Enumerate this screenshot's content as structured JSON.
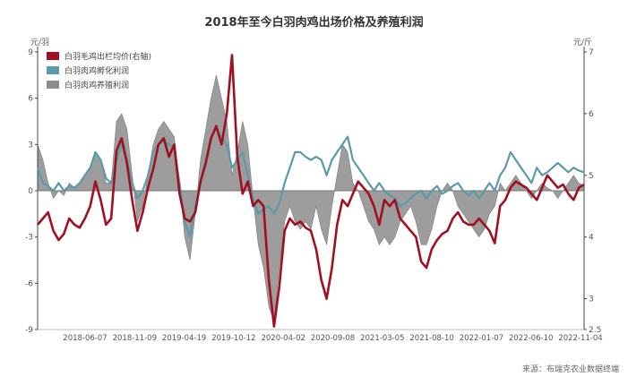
{
  "chart_data": {
    "type": "line",
    "title": "2018年至今白羽肉鸡出场价格及养殖利润",
    "left_axis": {
      "unit": "元/羽",
      "ticks": [
        -9,
        -6,
        -3,
        0,
        3,
        6,
        9
      ],
      "range": [
        -9,
        9
      ]
    },
    "right_axis": {
      "unit": "元/斤",
      "ticks": [
        2.5,
        3,
        4,
        5,
        6,
        7
      ],
      "range": [
        2.5,
        7
      ]
    },
    "x_ticks": [
      "2018-06-07",
      "2018-11-09",
      "2019-04-19",
      "2019-10-12",
      "2020-04-02",
      "2020-09-08",
      "2021-03-05",
      "2021-08-10",
      "2022-01-07",
      "2022-06-10",
      "2022-11-04"
    ],
    "legend_position": "top-left",
    "series": [
      {
        "name": "白羽毛鸡出栏均价(右轴)",
        "axis": "right",
        "style": "line",
        "color": "#a01020",
        "values": [
          4.2,
          4.3,
          4.4,
          4.1,
          3.95,
          4.05,
          4.3,
          4.2,
          4.15,
          4.3,
          4.5,
          4.9,
          4.6,
          4.2,
          4.3,
          5.4,
          5.6,
          5.2,
          4.6,
          4.1,
          4.4,
          4.8,
          5.1,
          5.5,
          5.6,
          5.3,
          5.5,
          4.7,
          4.3,
          4.25,
          4.4,
          4.9,
          5.2,
          5.6,
          5.8,
          5.5,
          6.0,
          6.95,
          5.3,
          4.7,
          4.9,
          4.5,
          4.6,
          4.5,
          3.3,
          2.55,
          3.2,
          4.1,
          4.3,
          4.2,
          4.25,
          4.15,
          4.1,
          3.8,
          3.3,
          3.0,
          3.5,
          4.2,
          4.6,
          4.5,
          4.7,
          4.9,
          4.8,
          4.7,
          4.5,
          4.2,
          4.6,
          4.5,
          4.6,
          4.3,
          4.2,
          4.1,
          4.0,
          3.6,
          3.5,
          3.8,
          3.95,
          4.05,
          4.1,
          4.3,
          4.4,
          4.25,
          4.2,
          4.2,
          4.3,
          4.2,
          4.1,
          3.9,
          4.5,
          4.6,
          4.8,
          4.9,
          4.85,
          4.8,
          4.7,
          4.6,
          4.8,
          5.0,
          4.9,
          4.8,
          4.85,
          4.7,
          4.6,
          4.8,
          4.85
        ]
      },
      {
        "name": "白羽肉鸡孵化利润",
        "axis": "left",
        "style": "line",
        "color": "#5b9aaa",
        "values": [
          1.5,
          0.5,
          0.3,
          0.0,
          0.5,
          0.0,
          0.3,
          0.2,
          0.5,
          1.0,
          1.5,
          2.5,
          2.0,
          0.8,
          0.5,
          2.0,
          3.0,
          2.0,
          0.5,
          -0.5,
          0.0,
          1.0,
          2.5,
          3.0,
          3.2,
          3.0,
          2.8,
          0.5,
          -2.0,
          -3.0,
          -1.0,
          0.5,
          2.0,
          3.5,
          4.0,
          3.5,
          3.0,
          1.5,
          2.0,
          2.5,
          1.0,
          -0.5,
          -1.5,
          -1.2,
          -1.0,
          -1.5,
          -0.8,
          0.5,
          1.5,
          2.5,
          2.5,
          2.2,
          2.0,
          2.2,
          2.0,
          1.0,
          2.0,
          2.5,
          3.0,
          3.5,
          2.0,
          1.5,
          1.0,
          0.5,
          0.0,
          0.5,
          0.0,
          -0.3,
          -0.5,
          -1.0,
          -0.8,
          -0.5,
          -0.2,
          0.0,
          -0.5,
          0.0,
          0.3,
          -0.2,
          0.0,
          0.3,
          0.5,
          0.0,
          -0.3,
          0.0,
          -0.5,
          0.0,
          0.5,
          0.0,
          1.0,
          1.5,
          2.5,
          2.0,
          1.5,
          1.0,
          0.5,
          1.5,
          1.0,
          1.2,
          1.5,
          1.8,
          1.5,
          1.2,
          1.5,
          1.3,
          1.2
        ]
      },
      {
        "name": "白羽肉鸡养殖利润",
        "axis": "left",
        "style": "area",
        "color": "#8c8c8c",
        "values": [
          3.0,
          2.0,
          0.5,
          -0.5,
          0.0,
          -0.3,
          0.5,
          0.2,
          0.5,
          1.0,
          1.5,
          2.5,
          2.0,
          0.5,
          0.5,
          4.5,
          5.0,
          4.0,
          1.0,
          -2.0,
          -1.0,
          1.0,
          3.0,
          4.0,
          4.5,
          4.0,
          3.5,
          0.5,
          -3.0,
          -4.5,
          -1.5,
          2.0,
          4.0,
          6.0,
          7.5,
          6.0,
          4.5,
          1.0,
          2.5,
          4.5,
          3.0,
          -0.5,
          -3.5,
          -5.0,
          -7.5,
          -8.5,
          -5.0,
          -2.0,
          -1.0,
          -2.0,
          -2.5,
          -2.0,
          -2.5,
          -1.0,
          -2.5,
          -3.5,
          -1.0,
          1.0,
          3.0,
          2.5,
          0.5,
          0.0,
          -1.0,
          -2.0,
          -2.5,
          -3.5,
          -3.0,
          -3.5,
          -3.0,
          -2.0,
          -1.5,
          -1.0,
          -2.0,
          -3.5,
          -3.5,
          -2.5,
          -1.0,
          0.0,
          0.5,
          0.0,
          -1.0,
          -1.5,
          -2.0,
          -2.5,
          -3.0,
          -2.5,
          -1.5,
          -1.0,
          0.5,
          0.0,
          0.5,
          1.0,
          0.5,
          0.0,
          -0.5,
          0.0,
          0.5,
          0.2,
          0.0,
          -0.5,
          0.0,
          0.5,
          1.0,
          0.5,
          0.3
        ]
      }
    ]
  },
  "source_note": "来源：布瑞克农业数据终端"
}
